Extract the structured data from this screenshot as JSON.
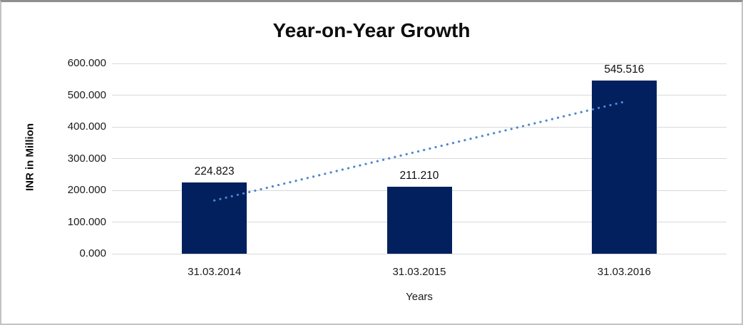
{
  "chart_data": {
    "type": "bar",
    "title": "Year-on-Year Growth",
    "xlabel": "Years",
    "ylabel": "INR in Million",
    "categories": [
      "31.03.2014",
      "31.03.2015",
      "31.03.2016"
    ],
    "values": [
      224.823,
      211.21,
      545.516
    ],
    "data_labels": [
      "224.823",
      "211.210",
      "545.516"
    ],
    "ylim": [
      0,
      600
    ],
    "ytick_step": 100,
    "ytick_labels": [
      "0.000",
      "100.000",
      "200.000",
      "300.000",
      "400.000",
      "500.000",
      "600.000"
    ],
    "grid": true,
    "legend": "none",
    "bar_color": "#02205E",
    "gridline_color": "#d9d9d9",
    "trendline": {
      "style": "dotted",
      "color": "#4E87CB",
      "start_value": 168,
      "end_value": 479
    }
  }
}
